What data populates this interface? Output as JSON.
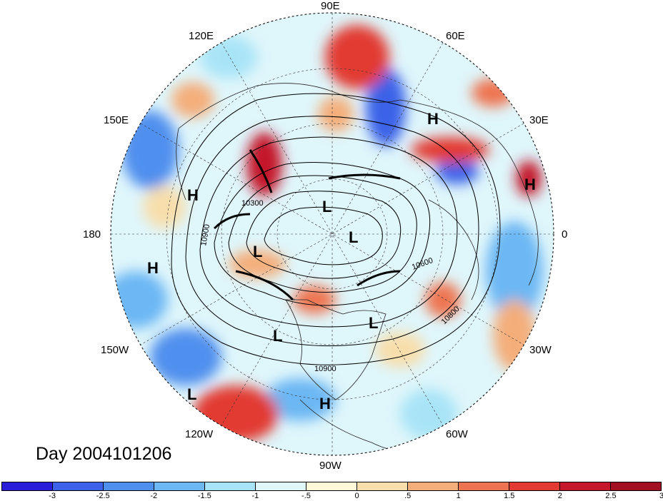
{
  "title": "Day 2004101206",
  "longitude_labels": {
    "lon_90e": "90E",
    "lon_60e": "60E",
    "lon_30e": "30E",
    "lon_0": "0",
    "lon_30w": "30W",
    "lon_60w": "60W",
    "lon_90w": "90W",
    "lon_120w": "120W",
    "lon_150w": "150W",
    "lon_180": "180",
    "lon_150e": "150E",
    "lon_120e": "120E"
  },
  "pressure_centers": [
    {
      "label": "H"
    },
    {
      "label": "H"
    },
    {
      "label": "H"
    },
    {
      "label": "H"
    },
    {
      "label": "H"
    },
    {
      "label": "L"
    },
    {
      "label": "L"
    },
    {
      "label": "L"
    },
    {
      "label": "L"
    },
    {
      "label": "L"
    },
    {
      "label": "L"
    }
  ],
  "contour_labels": [
    "10900",
    "10600",
    "10800",
    "10900",
    "10300"
  ],
  "colorbar": {
    "colors": [
      "#2a1ed8",
      "#3b62e8",
      "#4f8fee",
      "#6cb7f4",
      "#a8e4f7",
      "#dff6fb",
      "#fdf8d8",
      "#f8deac",
      "#f4ae7a",
      "#ee7451",
      "#e23a32",
      "#c4172b",
      "#a20f20"
    ],
    "tick_labels": [
      "-3",
      "-2.5",
      "-2",
      "-1.5",
      "-1",
      "-.5",
      "0",
      ".5",
      "1",
      "1.5",
      "2",
      "2.5",
      "3"
    ]
  }
}
